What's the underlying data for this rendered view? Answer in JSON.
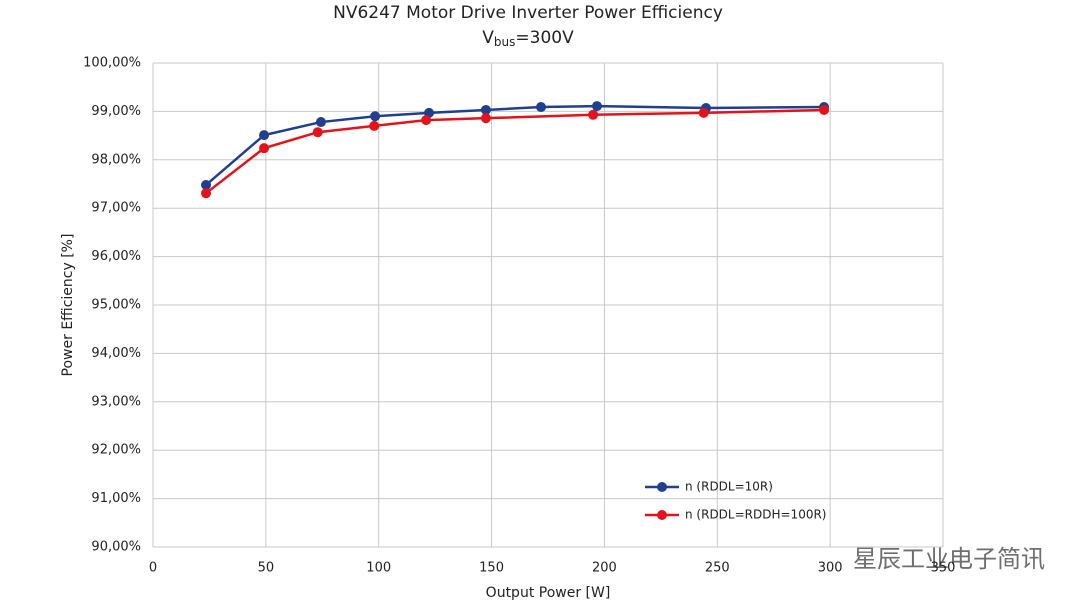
{
  "chart_data": {
    "type": "line",
    "title": "NV6247 Motor Drive Inverter Power Efficiency",
    "subtitle_parts": [
      "V",
      "bus",
      "=300V"
    ],
    "x_label": "Output Power [W]",
    "y_label": "Power Efficiency [%]",
    "xlim": [
      0,
      350
    ],
    "xticks": [
      0,
      50,
      100,
      150,
      200,
      250,
      300,
      350
    ],
    "ylim": [
      90,
      100
    ],
    "yticks": [
      {
        "value": 90,
        "label": "90,00%"
      },
      {
        "value": 91,
        "label": "91,00%"
      },
      {
        "value": 92,
        "label": "92,00%"
      },
      {
        "value": 93,
        "label": "93,00%"
      },
      {
        "value": 94,
        "label": "94,00%"
      },
      {
        "value": 95,
        "label": "95,00%"
      },
      {
        "value": 96,
        "label": "96,00%"
      },
      {
        "value": 97,
        "label": "97,00%"
      },
      {
        "value": 98,
        "label": "98,00%"
      },
      {
        "value": 99,
        "label": "99,00%"
      },
      {
        "value": 100,
        "label": "100,00%"
      }
    ],
    "grid": true,
    "legend": "lower-right",
    "series": [
      {
        "name": "n (RDDL=10R)",
        "color": "#1f3f8f",
        "x": [
          23.5,
          49.2,
          74.4,
          98.4,
          122.3,
          147.5,
          171.9,
          196.7,
          245,
          297.3
        ],
        "values": [
          97.48,
          98.51,
          98.78,
          98.9,
          98.97,
          99.03,
          99.09,
          99.11,
          99.07,
          99.09
        ]
      },
      {
        "name": "n (RDDL=RDDH=100R)",
        "color": "#e3131b",
        "x": [
          23.5,
          49.2,
          73,
          98,
          121,
          147.5,
          195,
          244,
          297.3
        ],
        "values": [
          97.31,
          98.24,
          98.57,
          98.7,
          98.82,
          98.86,
          98.93,
          98.97,
          99.03
        ]
      }
    ],
    "watermark": "星辰工业电子简讯"
  }
}
